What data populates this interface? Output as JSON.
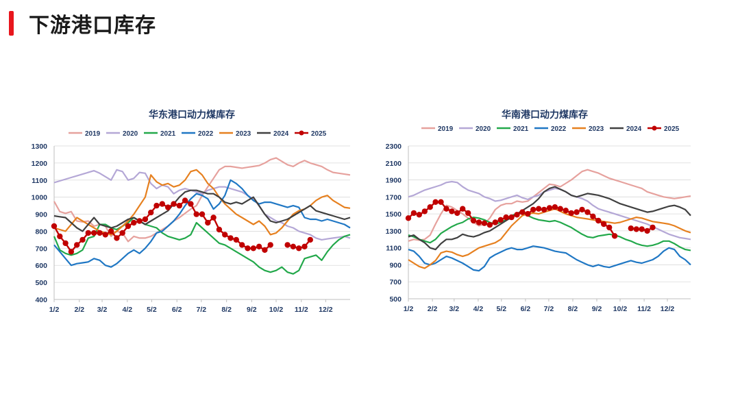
{
  "page": {
    "title": "下游港口库存",
    "accent_color": "#e8161d"
  },
  "chart_data": [
    {
      "type": "line",
      "title": "华东港口动力煤库存",
      "xlabel": "",
      "ylabel": "",
      "ylim": [
        400,
        1300
      ],
      "yticks": [
        400,
        500,
        600,
        700,
        800,
        900,
        1000,
        1100,
        1200,
        1300
      ],
      "x_range": [
        0,
        52
      ],
      "xticks": [
        {
          "label": "1/2",
          "x": 0
        },
        {
          "label": "2/2",
          "x": 4.43
        },
        {
          "label": "3/2",
          "x": 8.43
        },
        {
          "label": "4/2",
          "x": 12.86
        },
        {
          "label": "5/2",
          "x": 17.14
        },
        {
          "label": "6/2",
          "x": 21.57
        },
        {
          "label": "7/2",
          "x": 25.86
        },
        {
          "label": "8/2",
          "x": 30.29
        },
        {
          "label": "9/2",
          "x": 34.71
        },
        {
          "label": "10/2",
          "x": 39
        },
        {
          "label": "11/2",
          "x": 43.43
        },
        {
          "label": "12/2",
          "x": 47.71
        }
      ],
      "series": [
        {
          "name": "2019",
          "color": "#e6a19d",
          "markers": false,
          "values": [
            975,
            915,
            905,
            915,
            860,
            855,
            860,
            830,
            840,
            830,
            770,
            800,
            790,
            740,
            770,
            760,
            760,
            770,
            790,
            810,
            830,
            860,
            880,
            905,
            930,
            950,
            1010,
            1060,
            1110,
            1160,
            1180,
            1180,
            1175,
            1170,
            1175,
            1180,
            1185,
            1200,
            1220,
            1230,
            1210,
            1190,
            1180,
            1200,
            1215,
            1200,
            1190,
            1180,
            1160,
            1145,
            1140,
            1135,
            1130
          ]
        },
        {
          "name": "2020",
          "color": "#b4a7d6",
          "markers": false,
          "values": [
            1085,
            1095,
            1105,
            1115,
            1125,
            1135,
            1145,
            1155,
            1140,
            1120,
            1100,
            1160,
            1150,
            1100,
            1110,
            1145,
            1140,
            1080,
            1050,
            1070,
            1060,
            1020,
            1040,
            1050,
            1040,
            1030,
            1020,
            1040,
            1050,
            1060,
            1060,
            1050,
            1040,
            1030,
            1010,
            990,
            950,
            900,
            880,
            860,
            850,
            830,
            820,
            800,
            790,
            780,
            760,
            750,
            755,
            760,
            765,
            770,
            760
          ]
        },
        {
          "name": "2021",
          "color": "#22a84a",
          "markers": false,
          "values": [
            770,
            690,
            670,
            660,
            670,
            690,
            760,
            770,
            840,
            840,
            820,
            810,
            830,
            850,
            880,
            860,
            840,
            830,
            820,
            790,
            770,
            760,
            750,
            760,
            780,
            850,
            820,
            790,
            760,
            730,
            720,
            700,
            680,
            660,
            640,
            620,
            590,
            570,
            560,
            570,
            590,
            560,
            550,
            570,
            640,
            650,
            660,
            630,
            680,
            720,
            750,
            770,
            780
          ]
        },
        {
          "name": "2022",
          "color": "#1f77c4",
          "markers": false,
          "values": [
            720,
            680,
            640,
            600,
            610,
            615,
            620,
            640,
            630,
            600,
            590,
            610,
            640,
            670,
            690,
            670,
            700,
            740,
            790,
            800,
            830,
            860,
            900,
            950,
            990,
            1020,
            1010,
            990,
            930,
            960,
            1010,
            1100,
            1080,
            1050,
            1010,
            980,
            960,
            970,
            970,
            960,
            950,
            940,
            950,
            940,
            880,
            870,
            870,
            860,
            870,
            860,
            850,
            840,
            820
          ]
        },
        {
          "name": "2023",
          "color": "#e6801f",
          "markers": false,
          "values": [
            820,
            810,
            800,
            840,
            880,
            860,
            840,
            820,
            800,
            790,
            780,
            800,
            830,
            860,
            900,
            950,
            1000,
            1130,
            1090,
            1070,
            1080,
            1060,
            1070,
            1100,
            1150,
            1160,
            1130,
            1080,
            1050,
            1000,
            960,
            930,
            900,
            880,
            860,
            840,
            860,
            830,
            780,
            790,
            820,
            860,
            900,
            920,
            930,
            950,
            980,
            1000,
            1010,
            980,
            960,
            940,
            935
          ]
        },
        {
          "name": "2024",
          "color": "#404040",
          "markers": false,
          "values": [
            890,
            885,
            880,
            850,
            820,
            800,
            840,
            880,
            840,
            830,
            820,
            830,
            850,
            870,
            880,
            860,
            840,
            860,
            880,
            900,
            920,
            960,
            1000,
            1030,
            1040,
            1040,
            1030,
            1020,
            1020,
            1000,
            970,
            960,
            970,
            960,
            980,
            1000,
            950,
            900,
            860,
            850,
            860,
            870,
            890,
            910,
            930,
            950,
            920,
            910,
            900,
            890,
            880,
            870,
            880
          ]
        },
        {
          "name": "2025",
          "color": "#c00000",
          "markers": true,
          "values": [
            830,
            770,
            730,
            680,
            720,
            750,
            790,
            790,
            790,
            780,
            800,
            760,
            790,
            830,
            850,
            860,
            870,
            910,
            950,
            960,
            940,
            960,
            950,
            980,
            960,
            900,
            900,
            850,
            880,
            810,
            780,
            760,
            750,
            720,
            700,
            700,
            710,
            690,
            720,
            null,
            null,
            720,
            710,
            700,
            710,
            750
          ]
        }
      ]
    },
    {
      "type": "line",
      "title": "华南港口动力煤库存",
      "xlabel": "",
      "ylabel": "",
      "ylim": [
        500,
        2300
      ],
      "yticks": [
        500,
        700,
        900,
        1100,
        1300,
        1500,
        1700,
        1900,
        2100,
        2300
      ],
      "x_range": [
        0,
        52
      ],
      "xticks": [
        {
          "label": "1/2",
          "x": 0
        },
        {
          "label": "2/2",
          "x": 4.43
        },
        {
          "label": "3/2",
          "x": 8.43
        },
        {
          "label": "4/2",
          "x": 12.86
        },
        {
          "label": "5/2",
          "x": 17.14
        },
        {
          "label": "6/2",
          "x": 21.57
        },
        {
          "label": "7/2",
          "x": 25.86
        },
        {
          "label": "8/2",
          "x": 30.29
        },
        {
          "label": "9/2",
          "x": 34.71
        },
        {
          "label": "10/2",
          "x": 39
        },
        {
          "label": "11/2",
          "x": 43.43
        },
        {
          "label": "12/2",
          "x": 47.71
        }
      ],
      "series": [
        {
          "name": "2019",
          "color": "#e6a19d",
          "markers": false,
          "values": [
            1180,
            1200,
            1190,
            1200,
            1250,
            1380,
            1500,
            1600,
            1580,
            1540,
            1500,
            1450,
            1400,
            1360,
            1380,
            1450,
            1550,
            1600,
            1620,
            1620,
            1650,
            1640,
            1650,
            1700,
            1750,
            1800,
            1850,
            1840,
            1820,
            1860,
            1900,
            1950,
            2000,
            2020,
            2000,
            1980,
            1950,
            1920,
            1900,
            1880,
            1860,
            1840,
            1820,
            1800,
            1760,
            1740,
            1720,
            1700,
            1690,
            1680,
            1690,
            1700,
            1710
          ]
        },
        {
          "name": "2020",
          "color": "#b4a7d6",
          "markers": false,
          "values": [
            1700,
            1720,
            1750,
            1780,
            1800,
            1820,
            1840,
            1870,
            1880,
            1870,
            1820,
            1780,
            1760,
            1740,
            1700,
            1680,
            1650,
            1660,
            1680,
            1700,
            1720,
            1690,
            1670,
            1700,
            1720,
            1760,
            1780,
            1800,
            1790,
            1760,
            1720,
            1700,
            1680,
            1650,
            1600,
            1560,
            1540,
            1520,
            1500,
            1480,
            1460,
            1440,
            1420,
            1400,
            1380,
            1350,
            1320,
            1290,
            1260,
            1240,
            1220,
            1210,
            1200
          ]
        },
        {
          "name": "2021",
          "color": "#22a84a",
          "markers": false,
          "values": [
            1250,
            1230,
            1200,
            1180,
            1160,
            1200,
            1270,
            1310,
            1350,
            1380,
            1400,
            1440,
            1460,
            1450,
            1430,
            1400,
            1380,
            1400,
            1430,
            1480,
            1500,
            1510,
            1480,
            1450,
            1430,
            1420,
            1410,
            1420,
            1400,
            1370,
            1340,
            1300,
            1260,
            1230,
            1220,
            1240,
            1250,
            1260,
            1250,
            1230,
            1200,
            1180,
            1150,
            1130,
            1120,
            1130,
            1150,
            1180,
            1180,
            1150,
            1110,
            1080,
            1070
          ]
        },
        {
          "name": "2022",
          "color": "#1f77c4",
          "markers": false,
          "values": [
            1080,
            1060,
            1000,
            920,
            900,
            920,
            960,
            1000,
            980,
            950,
            920,
            880,
            840,
            830,
            880,
            980,
            1020,
            1050,
            1080,
            1100,
            1080,
            1080,
            1100,
            1120,
            1110,
            1100,
            1080,
            1060,
            1050,
            1040,
            1000,
            960,
            930,
            900,
            880,
            900,
            880,
            870,
            890,
            910,
            930,
            950,
            930,
            920,
            940,
            960,
            1000,
            1060,
            1100,
            1080,
            1000,
            960,
            900
          ]
        },
        {
          "name": "2023",
          "color": "#e6801f",
          "markers": false,
          "values": [
            960,
            920,
            880,
            860,
            900,
            950,
            1040,
            1060,
            1050,
            1020,
            1000,
            1020,
            1060,
            1100,
            1120,
            1140,
            1160,
            1200,
            1280,
            1360,
            1420,
            1480,
            1500,
            1510,
            1500,
            1520,
            1540,
            1560,
            1530,
            1500,
            1480,
            1460,
            1450,
            1440,
            1430,
            1420,
            1410,
            1400,
            1390,
            1400,
            1420,
            1440,
            1460,
            1450,
            1430,
            1410,
            1400,
            1390,
            1380,
            1360,
            1330,
            1300,
            1280
          ]
        },
        {
          "name": "2024",
          "color": "#404040",
          "markers": false,
          "values": [
            1230,
            1250,
            1200,
            1160,
            1100,
            1080,
            1150,
            1200,
            1200,
            1220,
            1260,
            1240,
            1230,
            1250,
            1280,
            1300,
            1340,
            1380,
            1420,
            1460,
            1500,
            1540,
            1580,
            1620,
            1680,
            1760,
            1800,
            1820,
            1790,
            1760,
            1720,
            1700,
            1720,
            1740,
            1730,
            1720,
            1700,
            1680,
            1650,
            1620,
            1600,
            1580,
            1560,
            1540,
            1520,
            1530,
            1550,
            1570,
            1590,
            1600,
            1580,
            1550,
            1480
          ]
        },
        {
          "name": "2025",
          "color": "#c00000",
          "markers": true,
          "values": [
            1450,
            1510,
            1490,
            1530,
            1580,
            1640,
            1640,
            1560,
            1530,
            1510,
            1560,
            1510,
            1420,
            1400,
            1390,
            1370,
            1400,
            1430,
            1460,
            1460,
            1490,
            1520,
            1500,
            1550,
            1560,
            1550,
            1570,
            1580,
            1560,
            1540,
            1510,
            1520,
            1550,
            1520,
            1470,
            1420,
            1380,
            1340,
            1240,
            null,
            null,
            1330,
            1320,
            1320,
            1300,
            1340
          ]
        }
      ]
    }
  ]
}
